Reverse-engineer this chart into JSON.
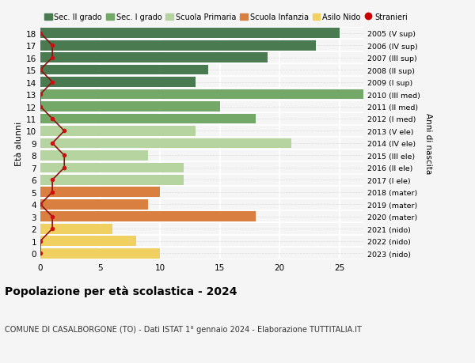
{
  "ages": [
    18,
    17,
    16,
    15,
    14,
    13,
    12,
    11,
    10,
    9,
    8,
    7,
    6,
    5,
    4,
    3,
    2,
    1,
    0
  ],
  "right_labels": [
    "2005 (V sup)",
    "2006 (IV sup)",
    "2007 (III sup)",
    "2008 (II sup)",
    "2009 (I sup)",
    "2010 (III med)",
    "2011 (II med)",
    "2012 (I med)",
    "2013 (V ele)",
    "2014 (IV ele)",
    "2015 (III ele)",
    "2016 (II ele)",
    "2017 (I ele)",
    "2018 (mater)",
    "2019 (mater)",
    "2020 (mater)",
    "2021 (nido)",
    "2022 (nido)",
    "2023 (nido)"
  ],
  "bar_values": [
    25,
    23,
    19,
    14,
    13,
    27,
    15,
    18,
    13,
    21,
    9,
    12,
    12,
    10,
    9,
    18,
    6,
    8,
    10
  ],
  "bar_colors": [
    "#4a7a50",
    "#4a7a50",
    "#4a7a50",
    "#4a7a50",
    "#4a7a50",
    "#73a868",
    "#73a868",
    "#73a868",
    "#b5d4a0",
    "#b5d4a0",
    "#b5d4a0",
    "#b5d4a0",
    "#b5d4a0",
    "#d98040",
    "#d98040",
    "#d98040",
    "#f0d060",
    "#f0d060",
    "#f0d060"
  ],
  "stranieri_x": [
    0,
    1,
    1,
    0,
    1,
    0,
    0,
    1,
    2,
    1,
    2,
    2,
    1,
    1,
    0,
    1,
    1,
    0,
    0
  ],
  "stranieri_line_color": "#8b1010",
  "stranieri_dot_color": "#cc1010",
  "legend_labels": [
    "Sec. II grado",
    "Sec. I grado",
    "Scuola Primaria",
    "Scuola Infanzia",
    "Asilo Nido",
    "Stranieri"
  ],
  "legend_colors": [
    "#4a7a50",
    "#73a868",
    "#b5d4a0",
    "#d98040",
    "#f0d060",
    "#cc0000"
  ],
  "ylabel": "Età alunni",
  "right_ylabel": "Anni di nascita",
  "title": "Popolazione per età scolastica - 2024",
  "subtitle": "COMUNE DI CASALBORGONE (TO) - Dati ISTAT 1° gennaio 2024 - Elaborazione TUTTITALIA.IT",
  "xlim": [
    0,
    27
  ],
  "xticks": [
    0,
    5,
    10,
    15,
    20,
    25
  ],
  "background_color": "#f5f5f5",
  "grid_color": "#ffffff",
  "dashed_grid_color": "#dddddd"
}
